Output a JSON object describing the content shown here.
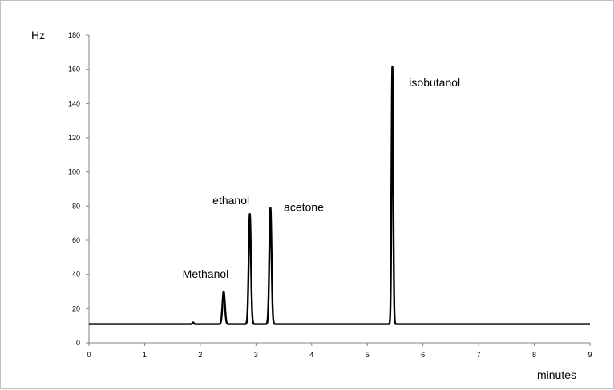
{
  "chart_data": {
    "type": "line",
    "title": "",
    "xlabel": "minutes",
    "ylabel": "Hz",
    "xlim": [
      0,
      9
    ],
    "ylim": [
      0,
      180
    ],
    "x_ticks": [
      0,
      1,
      2,
      3,
      4,
      5,
      6,
      7,
      8,
      9
    ],
    "y_ticks": [
      0,
      20,
      40,
      60,
      80,
      100,
      120,
      140,
      160,
      180
    ],
    "grid": false,
    "legend": "none",
    "baseline": 11,
    "series": [
      {
        "color": "#000000",
        "peaks": [
          {
            "x": 1.87,
            "height": 12,
            "width": 0.012
          },
          {
            "x": 2.42,
            "height": 30,
            "width": 0.022
          },
          {
            "x": 2.89,
            "height": 75.5,
            "width": 0.02
          },
          {
            "x": 3.26,
            "height": 79,
            "width": 0.02
          },
          {
            "x": 5.45,
            "height": 162,
            "width": 0.015
          }
        ]
      }
    ],
    "annotations": [
      {
        "text": "Methanol",
        "x": 1.68,
        "y": 38
      },
      {
        "text": "ethanol",
        "x": 2.22,
        "y": 81
      },
      {
        "text": "acetone",
        "x": 3.5,
        "y": 77
      },
      {
        "text": "isobutanol",
        "x": 5.75,
        "y": 150
      }
    ]
  }
}
